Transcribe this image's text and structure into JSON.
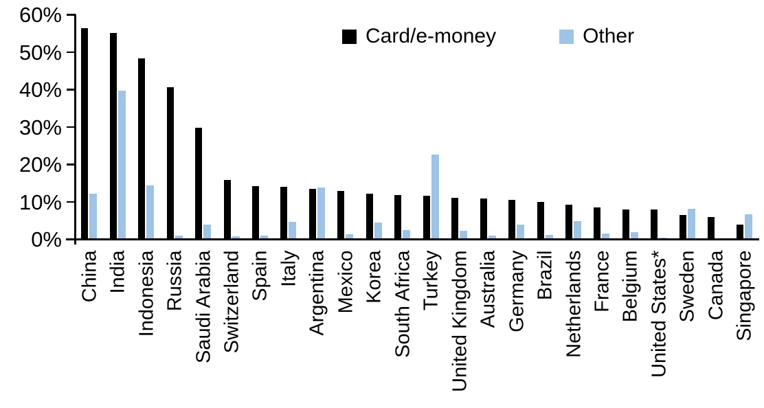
{
  "chart_data": {
    "type": "bar",
    "title": "",
    "xlabel": "",
    "ylabel": "",
    "ylim": [
      0,
      60
    ],
    "ytick_step": 10,
    "ytick_labels": [
      "0%",
      "10%",
      "20%",
      "30%",
      "40%",
      "50%",
      "60%"
    ],
    "grid": false,
    "legend_position": "top-center",
    "categories": [
      "China",
      "India",
      "Indonesia",
      "Russia",
      "Saudi Arabia",
      "Switzerland",
      "Spain",
      "Italy",
      "Argentina",
      "Mexico",
      "Korea",
      "South Africa",
      "Turkey",
      "United Kingdom",
      "Australia",
      "Germany",
      "Brazil",
      "Netherlands",
      "France",
      "Belgium",
      "United States*",
      "Sweden",
      "Canada",
      "Singapore"
    ],
    "series": [
      {
        "name": "Card/e-money",
        "color": "#000000",
        "values": [
          56.4,
          55.1,
          48.2,
          40.6,
          29.8,
          15.7,
          14.1,
          14.0,
          13.4,
          12.9,
          12.2,
          11.7,
          11.5,
          11.0,
          10.8,
          10.5,
          9.9,
          9.1,
          8.5,
          7.9,
          7.8,
          6.5,
          5.9,
          3.8
        ]
      },
      {
        "name": "Other",
        "color": "#9EC3E6",
        "values": [
          12.2,
          39.6,
          14.4,
          0.9,
          3.8,
          0.7,
          1.0,
          4.5,
          13.8,
          1.3,
          4.4,
          2.3,
          22.5,
          2.2,
          1.0,
          3.8,
          1.1,
          4.7,
          1.4,
          1.9,
          0.3,
          8.1,
          0,
          6.6
        ]
      }
    ]
  }
}
